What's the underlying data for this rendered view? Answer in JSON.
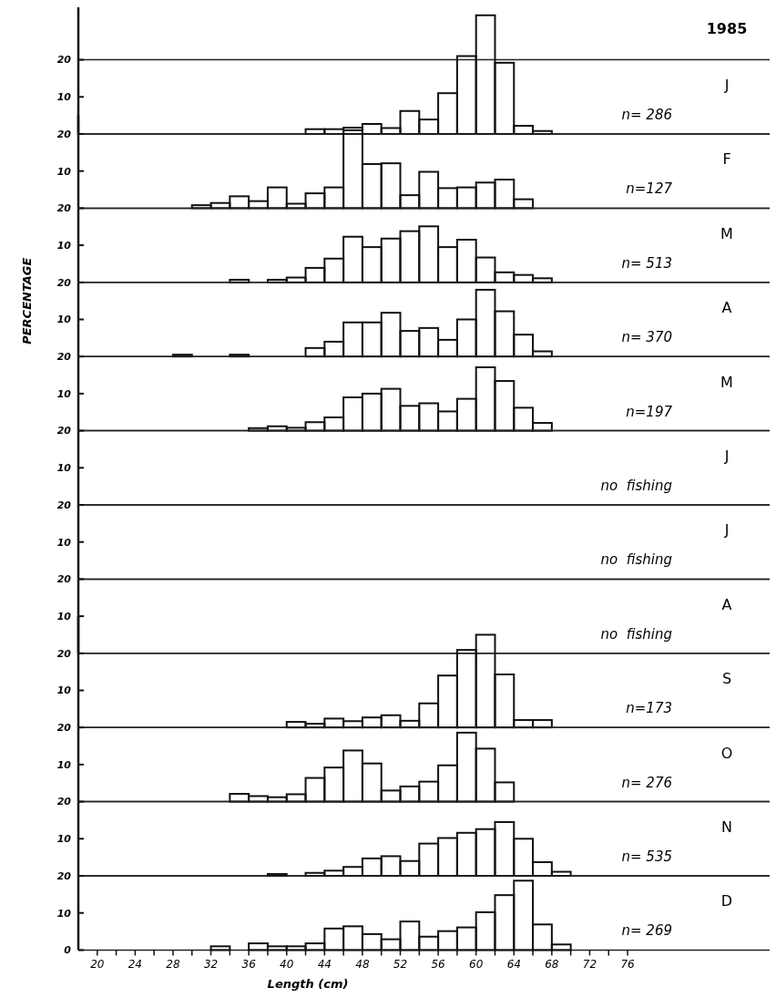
{
  "chart_data": [
    {
      "type": "histogram",
      "title": "J",
      "subtitle": "1985",
      "annotations": [
        "n= 286"
      ],
      "bins": [
        42,
        44,
        46,
        48,
        50,
        52,
        54,
        56,
        58,
        60,
        62,
        64,
        66,
        68
      ],
      "values": [
        1.3,
        1.3,
        1.7,
        2.7,
        1.6,
        6.2,
        3.9,
        11,
        21,
        32,
        19.2,
        2.2,
        0.8
      ],
      "xlim": [
        18,
        91
      ],
      "ylim": [
        0,
        35
      ],
      "yticks": [
        10,
        20
      ],
      "tick_labels": "y"
    },
    {
      "type": "histogram",
      "title": "F",
      "annotations": [
        "n=127"
      ],
      "bins": [
        30,
        32,
        34,
        36,
        38,
        40,
        42,
        44,
        46,
        48,
        50,
        52,
        54,
        56,
        58,
        60,
        62,
        64,
        66
      ],
      "values": [
        0.8,
        1.4,
        3.2,
        1.9,
        5.6,
        1.2,
        4,
        5.6,
        21,
        11.9,
        12.1,
        3.5,
        9.8,
        5.4,
        5.6,
        6.9,
        7.7,
        2.4
      ],
      "xlim": [
        18,
        91
      ],
      "ylim": [
        0,
        25
      ],
      "yticks": [
        10,
        20
      ],
      "tick_labels": "y"
    },
    {
      "type": "histogram",
      "title": "M",
      "annotations": [
        "n= 513"
      ],
      "bins": [
        34,
        36,
        38,
        40,
        42,
        44,
        46,
        48,
        50,
        52,
        54,
        56,
        58,
        60,
        62,
        64,
        66,
        68
      ],
      "values": [
        0.7,
        0,
        0.7,
        1.3,
        3.9,
        6.4,
        12.3,
        9.5,
        11.8,
        13.8,
        15.1,
        9.5,
        11.5,
        6.7,
        2.7,
        2,
        1.1
      ],
      "xlim": [
        18,
        91
      ],
      "ylim": [
        0,
        20
      ],
      "yticks": [
        10,
        20
      ],
      "tick_labels": "y"
    },
    {
      "type": "histogram",
      "title": "A",
      "ylabel": "PERCENTAGE",
      "annotations": [
        "n= 370"
      ],
      "bins": [
        28,
        30,
        32,
        34,
        36,
        38,
        40,
        42,
        44,
        46,
        48,
        50,
        52,
        54,
        56,
        58,
        60,
        62,
        64,
        66,
        68
      ],
      "values": [
        0.5,
        0,
        0,
        0.5,
        0,
        0,
        0,
        2.3,
        4,
        9.2,
        9.2,
        11.8,
        6.9,
        7.7,
        4.5,
        10,
        18,
        12.2,
        5.9,
        1.4
      ],
      "xlim": [
        18,
        91
      ],
      "ylim": [
        0,
        20
      ],
      "yticks": [
        10,
        20
      ],
      "tick_labels": "y"
    },
    {
      "type": "histogram",
      "title": "M",
      "annotations": [
        "n=197"
      ],
      "bins": [
        36,
        38,
        40,
        42,
        44,
        46,
        48,
        50,
        52,
        54,
        56,
        58,
        60,
        62,
        64,
        66,
        68
      ],
      "values": [
        0.7,
        1.2,
        0.8,
        2.3,
        3.6,
        9,
        10,
        11.3,
        6.7,
        7.4,
        5.2,
        8.6,
        17.1,
        13.4,
        6.2,
        2.1
      ],
      "xlim": [
        18,
        91
      ],
      "ylim": [
        0,
        20
      ],
      "yticks": [
        10,
        20
      ],
      "tick_labels": "y"
    },
    {
      "type": "histogram",
      "title": "J",
      "annotations": [
        "no  fishing"
      ],
      "xlim": [
        18,
        91
      ],
      "ylim": [
        0,
        20
      ],
      "yticks": [
        10,
        20
      ],
      "tick_labels": "y"
    },
    {
      "type": "histogram",
      "title": "J",
      "annotations": [
        "no  fishing"
      ],
      "xlim": [
        18,
        91
      ],
      "ylim": [
        0,
        20
      ],
      "yticks": [
        10,
        20
      ],
      "tick_labels": "y"
    },
    {
      "type": "histogram",
      "title": "A",
      "annotations": [
        "no  fishing"
      ],
      "xlim": [
        18,
        91
      ],
      "ylim": [
        0,
        20
      ],
      "yticks": [
        10,
        20
      ],
      "tick_labels": "y"
    },
    {
      "type": "histogram",
      "title": "S",
      "annotations": [
        "n=173"
      ],
      "bins": [
        40,
        42,
        44,
        46,
        48,
        50,
        52,
        54,
        56,
        58,
        60,
        62,
        64,
        66,
        68
      ],
      "values": [
        1.5,
        1,
        2.4,
        1.7,
        2.7,
        3.3,
        1.8,
        6.5,
        14,
        20.9,
        25,
        14.3,
        2,
        2
      ],
      "xlim": [
        18,
        91
      ],
      "ylim": [
        0,
        30
      ],
      "yticks": [
        10,
        20
      ],
      "tick_labels": "y"
    },
    {
      "type": "histogram",
      "title": "O",
      "annotations": [
        "n= 276"
      ],
      "bins": [
        34,
        36,
        38,
        40,
        42,
        44,
        46,
        48,
        50,
        52,
        54,
        56,
        58,
        60,
        62,
        64
      ],
      "values": [
        2.1,
        1.5,
        1.2,
        2,
        6.4,
        9.2,
        13.8,
        10.3,
        3,
        4.1,
        5.4,
        9.8,
        18.6,
        14.3,
        5.2
      ],
      "xlim": [
        18,
        91
      ],
      "ylim": [
        0,
        20
      ],
      "yticks": [
        10,
        20
      ],
      "tick_labels": "y"
    },
    {
      "type": "histogram",
      "title": "N",
      "annotations": [
        "n= 535"
      ],
      "bins": [
        38,
        40,
        42,
        44,
        46,
        48,
        50,
        52,
        54,
        56,
        58,
        60,
        62,
        64,
        66,
        68,
        70
      ],
      "values": [
        0.5,
        0,
        0.8,
        1.4,
        2.4,
        4.7,
        5.3,
        4,
        8.7,
        10.2,
        11.6,
        12.6,
        14.5,
        10,
        3.7,
        1.1
      ],
      "xlim": [
        18,
        91
      ],
      "ylim": [
        0,
        20
      ],
      "yticks": [
        10,
        20
      ],
      "tick_labels": "y"
    },
    {
      "type": "histogram",
      "title": "D",
      "xlabel": "Length (cm)",
      "annotations": [
        "n= 269"
      ],
      "bins": [
        32,
        34,
        36,
        38,
        40,
        42,
        44,
        46,
        48,
        50,
        52,
        54,
        56,
        58,
        60,
        62,
        64,
        66,
        68,
        70
      ],
      "values": [
        1,
        0,
        1.8,
        1,
        1,
        1.8,
        5.8,
        6.4,
        4.3,
        2.9,
        7.7,
        3.6,
        5.1,
        6.1,
        10.2,
        14.8,
        18.7,
        6.9,
        1.5
      ],
      "xlim": [
        18,
        91
      ],
      "ylim": [
        0,
        20
      ],
      "yticks": [
        0,
        10,
        20
      ],
      "xticks": [
        20,
        {
          "value": 22,
          "label": null
        },
        24,
        {
          "value": 26,
          "label": null
        },
        28,
        {
          "value": 30,
          "label": null
        },
        32,
        {
          "value": 34,
          "label": null
        },
        36,
        {
          "value": 38,
          "label": null
        },
        40,
        {
          "value": 42,
          "label": null
        },
        44,
        {
          "value": 46,
          "label": null
        },
        48,
        {
          "value": 50,
          "label": null
        },
        52,
        {
          "value": 54,
          "label": null
        },
        56,
        {
          "value": 58,
          "label": null
        },
        60,
        {
          "value": 62,
          "label": null
        },
        64,
        {
          "value": 66,
          "label": null
        },
        68,
        {
          "value": 70,
          "label": null
        },
        72,
        {
          "value": 74,
          "label": null
        },
        76
      ]
    }
  ]
}
